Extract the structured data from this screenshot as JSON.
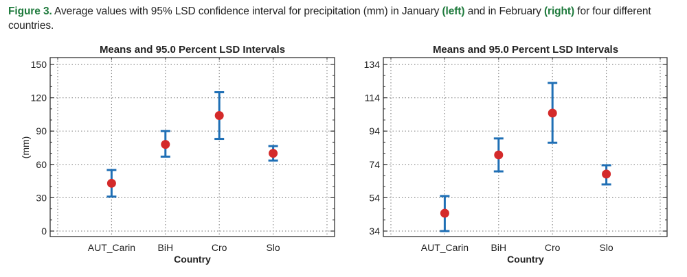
{
  "caption": {
    "label": "Figure 3.",
    "text_1": " Average values with 95% LSD confidence interval for precipitation (mm) in January ",
    "left": "(left)",
    "text_2": " and in February ",
    "right": "(right)",
    "text_3": " for four different countries."
  },
  "colors": {
    "caption_accent": "#1e7a3c",
    "interval": "#1f6fb5",
    "mean_marker": "#d42a2a",
    "grid": "#8a8a8a"
  },
  "chart_data": [
    {
      "type": "errorbar",
      "panel": "left",
      "month": "January",
      "title": "Means and 95.0 Percent LSD Intervals",
      "xlabel": "Country",
      "ylabel": "(mm)",
      "categories": [
        "AUT_Carin",
        "BiH",
        "Cro",
        "Slo"
      ],
      "ylim": [
        0,
        150
      ],
      "yticks": [
        0,
        30,
        60,
        90,
        120,
        150
      ],
      "ytick_labels": [
        "0",
        "30",
        "60",
        "90",
        "120",
        "150"
      ],
      "y_minor_step": 10,
      "grid": true,
      "series": [
        {
          "name": "Mean",
          "values": [
            43,
            78,
            104,
            70
          ],
          "lower": [
            31,
            67,
            83,
            63.5
          ],
          "upper": [
            55,
            90,
            125,
            76.5
          ]
        }
      ]
    },
    {
      "type": "errorbar",
      "panel": "right",
      "month": "February",
      "title": "Means and 95.0 Percent LSD Intervals",
      "xlabel": "Country",
      "ylabel": "",
      "categories": [
        "AUT_Carin",
        "BiH",
        "Cro",
        "Slo"
      ],
      "ylim": [
        34,
        134
      ],
      "yticks": [
        34,
        54,
        74,
        94,
        114,
        134
      ],
      "ytick_labels": [
        "34",
        "54",
        "74",
        "94",
        "114",
        "134"
      ],
      "y_minor_step": 6.6667,
      "grid": true,
      "series": [
        {
          "name": "Mean",
          "values": [
            44.7,
            79.7,
            104.8,
            68.2
          ],
          "lower": [
            34,
            69.8,
            87,
            62
          ],
          "upper": [
            55,
            89.6,
            122.9,
            73.5
          ]
        }
      ]
    }
  ]
}
